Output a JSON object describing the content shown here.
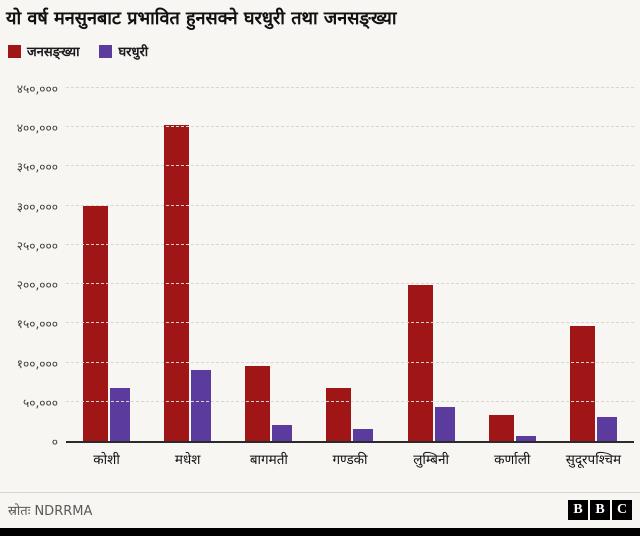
{
  "title": "यो वर्ष मनसुनबाट प्रभावित हुनसक्ने घरधुरी तथा जनसङ्ख्या",
  "legend": [
    {
      "label": "जनसङ्ख्या",
      "color": "#a01616"
    },
    {
      "label": "घरधुरी",
      "color": "#5b3b9d"
    }
  ],
  "source": "स्रोतः NDRRMA",
  "logo": {
    "letters": [
      "B",
      "B",
      "C"
    ]
  },
  "chart_data": {
    "type": "bar",
    "title": "यो वर्ष मनसुनबाट प्रभावित हुनसक्ने घरधुरी तथा जनसङ्ख्या",
    "categories": [
      "कोशी",
      "मधेश",
      "बागमती",
      "गण्डकी",
      "लुम्बिनी",
      "कर्णाली",
      "सुदूरपश्चिम"
    ],
    "series": [
      {
        "name": "जनसङ्ख्या",
        "color": "#a01616",
        "values": [
          300000,
          403000,
          95000,
          68000,
          199000,
          33000,
          146000
        ]
      },
      {
        "name": "घरधुरी",
        "color": "#5b3b9d",
        "values": [
          67000,
          91000,
          21000,
          15000,
          44000,
          7000,
          31000
        ]
      }
    ],
    "xlabel": "",
    "ylabel": "",
    "ylim": [
      0,
      450000
    ],
    "grid": "dashed-horizontal",
    "legend_position": "top-left",
    "y_ticks": [
      {
        "value": 450000,
        "label": "४५०,०००"
      },
      {
        "value": 400000,
        "label": "४००,०००"
      },
      {
        "value": 350000,
        "label": "३५०,०००"
      },
      {
        "value": 300000,
        "label": "३००,०००"
      },
      {
        "value": 250000,
        "label": "२५०,०००"
      },
      {
        "value": 200000,
        "label": "२००,०००"
      },
      {
        "value": 150000,
        "label": "१५०,०००"
      },
      {
        "value": 100000,
        "label": "१००,०००"
      },
      {
        "value": 50000,
        "label": "५०,०००"
      },
      {
        "value": 0,
        "label": "०"
      }
    ]
  }
}
